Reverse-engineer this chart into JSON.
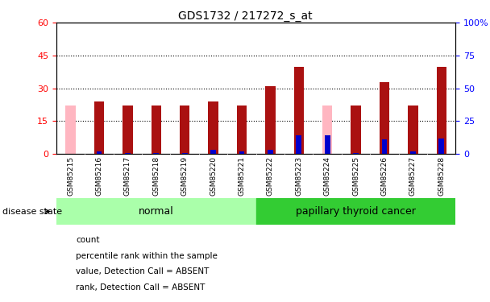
{
  "title": "GDS1732 / 217272_s_at",
  "samples": [
    "GSM85215",
    "GSM85216",
    "GSM85217",
    "GSM85218",
    "GSM85219",
    "GSM85220",
    "GSM85221",
    "GSM85222",
    "GSM85223",
    "GSM85224",
    "GSM85225",
    "GSM85226",
    "GSM85227",
    "GSM85228"
  ],
  "count_values": [
    0,
    24,
    22,
    22,
    22,
    24,
    22,
    31,
    40,
    0,
    22,
    33,
    22,
    40
  ],
  "rank_values": [
    0,
    2,
    0.5,
    0.5,
    0.5,
    3,
    2,
    3,
    14,
    14,
    0.5,
    11,
    2,
    12
  ],
  "absent_count": [
    22,
    0,
    0,
    0,
    0,
    0,
    0,
    0,
    0,
    22,
    0,
    0,
    0,
    0
  ],
  "normal_indices": [
    0,
    1,
    2,
    3,
    4,
    5,
    6
  ],
  "cancer_indices": [
    7,
    8,
    9,
    10,
    11,
    12,
    13
  ],
  "ylim_left": [
    0,
    60
  ],
  "ylim_right": [
    0,
    100
  ],
  "yticks_left": [
    0,
    15,
    30,
    45,
    60
  ],
  "yticks_right": [
    0,
    25,
    50,
    75,
    100
  ],
  "ytick_labels_right": [
    "0",
    "25",
    "50",
    "75",
    "100%"
  ],
  "bar_color_count": "#AA1111",
  "bar_color_rank": "#0000CC",
  "bar_color_absent_count": "#FFB6C1",
  "bar_color_absent_rank": "#AAAAFF",
  "normal_color": "#AAFFAA",
  "cancer_color": "#33CC33",
  "bg_sample_color": "#C8C8C8",
  "legend_items": [
    {
      "color": "#AA1111",
      "label": "count"
    },
    {
      "color": "#0000CC",
      "label": "percentile rank within the sample"
    },
    {
      "color": "#FFB6C1",
      "label": "value, Detection Call = ABSENT"
    },
    {
      "color": "#AAAAFF",
      "label": "rank, Detection Call = ABSENT"
    }
  ],
  "bar_width": 0.35,
  "disease_label": "disease state"
}
